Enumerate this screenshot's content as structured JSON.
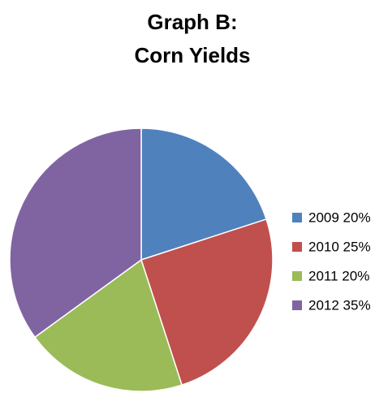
{
  "chart_data": {
    "type": "pie",
    "title_lines": [
      "Graph B:",
      "Corn Yields"
    ],
    "categories": [
      "2009",
      "2010",
      "2011",
      "2012"
    ],
    "values": [
      20,
      25,
      20,
      35
    ],
    "legend_labels": [
      "2009 20%",
      "2010 25%",
      "2011 20%",
      "2012 35%"
    ],
    "colors": [
      "#4F81BD",
      "#C0504D",
      "#9BBB59",
      "#8064A2"
    ],
    "legend_position": "right",
    "start_angle_deg": 0,
    "direction": "clockwise"
  }
}
